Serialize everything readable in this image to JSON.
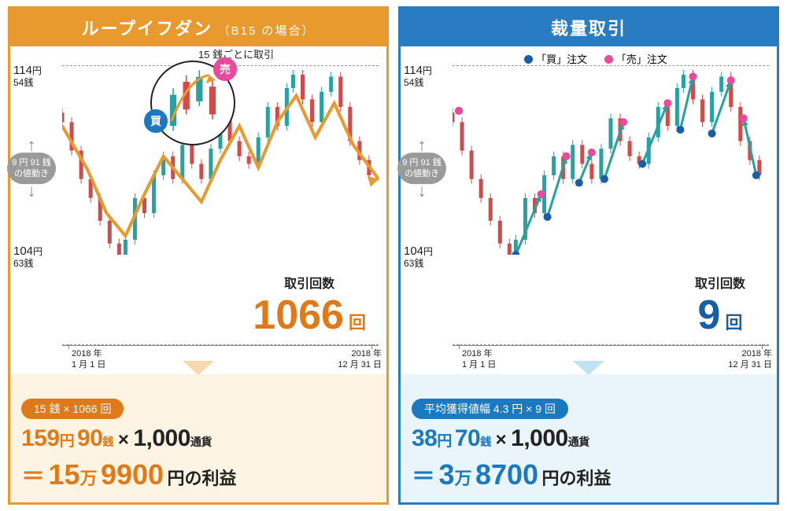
{
  "left": {
    "header_title": "ループイフダン",
    "header_sub": "（B15 の場合）",
    "bubble_note": "15 銭ごとに取引",
    "buy_label": "買",
    "sell_label": "売",
    "axis": {
      "top_yen": "114",
      "top_sen": "54",
      "bot_yen": "104",
      "bot_sen": "63",
      "range1": "9 円 91 銭",
      "range2": "の値動き",
      "date_start_y": "2018 年",
      "date_start_md": "1 月 1 日",
      "date_end_y": "2018 年",
      "date_end_md": "12 月 31 日"
    },
    "count_label": "取引回数",
    "count_num": "1066",
    "count_unit": "回",
    "badge": "15 銭 × 1066 回",
    "f_yen": "159",
    "f_sen": "90",
    "f_mult": "1,000",
    "f_currency": "通貨",
    "r_man": "15",
    "r_yen": "9900",
    "colors": {
      "accent": "#e89a2e",
      "text": "#e07a18"
    }
  },
  "right": {
    "header_title": "裁量取引",
    "legend_buy": "「買」注文",
    "legend_sell": "「売」注文",
    "axis": {
      "top_yen": "114",
      "top_sen": "54",
      "bot_yen": "104",
      "bot_sen": "63",
      "range1": "9 円 91 銭",
      "range2": "の値動き",
      "date_start_y": "2018 年",
      "date_start_md": "1 月 1 日",
      "date_end_y": "2018 年",
      "date_end_md": "12 月 31 日"
    },
    "count_label": "取引回数",
    "count_num": "9",
    "count_unit": "回",
    "badge": "平均獲得値幅 4.3 円 × 9 回",
    "f_yen": "38",
    "f_sen": "70",
    "f_mult": "1,000",
    "f_currency": "通貨",
    "r_man": "3",
    "r_yen": "8700",
    "colors": {
      "accent": "#2a7cc2",
      "text": "#1a79c1"
    }
  },
  "units": {
    "yen": "円",
    "sen": "銭",
    "man": "万",
    "profit": "円の利益"
  },
  "chart_style": {
    "type": "candlestick-overlay-comparison",
    "xlim": [
      "2018-01-01",
      "2018-12-31"
    ],
    "ylim": [
      104.63,
      114.54
    ],
    "background_color": "#ffffff",
    "grid_dash_color": "#999999",
    "candlestick_up_color": "#2aa1a1",
    "candlestick_down_color": "#d24a4a",
    "left_overlay_line_color": "#e89a2e",
    "left_overlay_line_width": 3,
    "right_arrow_color": "#2aa1a1",
    "right_arrow_width": 3,
    "buy_dot_color": "#1a5fa5",
    "sell_dot_color": "#ea4a9c",
    "dot_radius": 5,
    "circle_inset_fill": "#ffffff",
    "circle_inset_stroke": "#222222",
    "inset_arrow_color": "#e89a2e"
  },
  "price_path": [
    [
      0,
      0.75
    ],
    [
      0.03,
      0.7
    ],
    [
      0.06,
      0.55
    ],
    [
      0.09,
      0.4
    ],
    [
      0.12,
      0.3
    ],
    [
      0.15,
      0.18
    ],
    [
      0.18,
      0.06
    ],
    [
      0.2,
      0.0
    ],
    [
      0.23,
      0.08
    ],
    [
      0.26,
      0.3
    ],
    [
      0.29,
      0.22
    ],
    [
      0.32,
      0.42
    ],
    [
      0.35,
      0.52
    ],
    [
      0.38,
      0.4
    ],
    [
      0.41,
      0.58
    ],
    [
      0.44,
      0.48
    ],
    [
      0.47,
      0.4
    ],
    [
      0.5,
      0.56
    ],
    [
      0.53,
      0.72
    ],
    [
      0.56,
      0.6
    ],
    [
      0.59,
      0.52
    ],
    [
      0.62,
      0.48
    ],
    [
      0.65,
      0.62
    ],
    [
      0.68,
      0.78
    ],
    [
      0.71,
      0.68
    ],
    [
      0.73,
      0.88
    ],
    [
      0.76,
      0.95
    ],
    [
      0.79,
      0.82
    ],
    [
      0.82,
      0.7
    ],
    [
      0.85,
      0.86
    ],
    [
      0.88,
      0.94
    ],
    [
      0.91,
      0.78
    ],
    [
      0.94,
      0.6
    ],
    [
      0.97,
      0.5
    ],
    [
      1.0,
      0.42
    ]
  ],
  "left_wave": [
    [
      0.0,
      0.68
    ],
    [
      0.08,
      0.45
    ],
    [
      0.14,
      0.22
    ],
    [
      0.2,
      0.1
    ],
    [
      0.26,
      0.32
    ],
    [
      0.32,
      0.52
    ],
    [
      0.38,
      0.4
    ],
    [
      0.44,
      0.28
    ],
    [
      0.5,
      0.5
    ],
    [
      0.56,
      0.68
    ],
    [
      0.62,
      0.46
    ],
    [
      0.68,
      0.7
    ],
    [
      0.74,
      0.84
    ],
    [
      0.8,
      0.62
    ],
    [
      0.86,
      0.8
    ],
    [
      0.92,
      0.58
    ],
    [
      1.0,
      0.4
    ]
  ],
  "right_trades": [
    {
      "buy": [
        0.02,
        0.76
      ],
      "sell": [
        0.02,
        0.76
      ]
    },
    {
      "buy": [
        0.2,
        0.0
      ],
      "sell": [
        0.28,
        0.32
      ]
    },
    {
      "buy": [
        0.3,
        0.2
      ],
      "sell": [
        0.36,
        0.52
      ]
    },
    {
      "buy": [
        0.4,
        0.38
      ],
      "sell": [
        0.44,
        0.54
      ]
    },
    {
      "buy": [
        0.48,
        0.4
      ],
      "sell": [
        0.54,
        0.7
      ]
    },
    {
      "buy": [
        0.6,
        0.48
      ],
      "sell": [
        0.68,
        0.8
      ]
    },
    {
      "buy": [
        0.72,
        0.66
      ],
      "sell": [
        0.76,
        0.94
      ]
    },
    {
      "buy": [
        0.82,
        0.64
      ],
      "sell": [
        0.88,
        0.92
      ]
    },
    {
      "buy": [
        0.96,
        0.42
      ],
      "sell": [
        0.92,
        0.72
      ]
    }
  ]
}
